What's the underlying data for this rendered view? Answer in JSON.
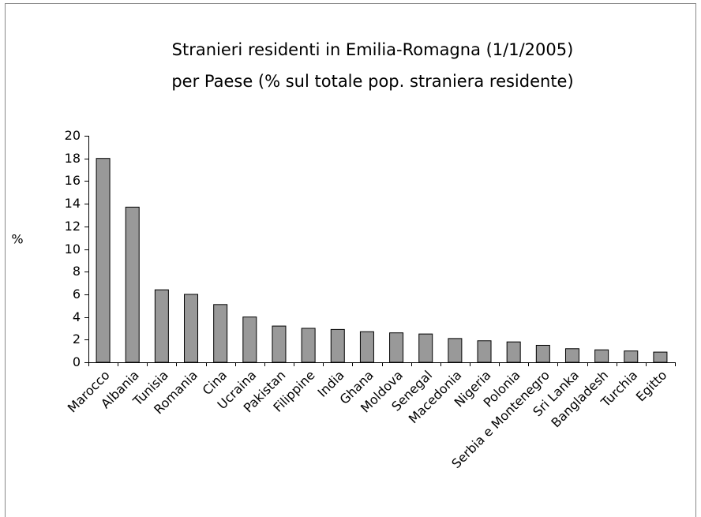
{
  "chart_data": {
    "type": "bar",
    "title": "Stranieri residenti in Emilia-Romagna (1/1/2005)",
    "subtitle": "per Paese (% sul totale pop. straniera residente)",
    "y_label": "%",
    "categories": [
      "Marocco",
      "Albania",
      "Tunisia",
      "Romania",
      "Cina",
      "Ucraina",
      "Pakistan",
      "Filippine",
      "India",
      "Ghana",
      "Moldova",
      "Senegal",
      "Macedonia",
      "Nigeria",
      "Polonia",
      "Serbia e Montenegro",
      "Sri Lanka",
      "Bangladesh",
      "Turchia",
      "Egitto"
    ],
    "values": [
      18.0,
      13.7,
      6.4,
      6.0,
      5.1,
      4.0,
      3.2,
      3.0,
      2.9,
      2.7,
      2.6,
      2.5,
      2.1,
      1.9,
      1.8,
      1.5,
      1.2,
      1.1,
      1.0,
      0.9
    ],
    "color": "#999999",
    "ylim": [
      0,
      20
    ],
    "yticks": [
      0,
      2,
      4,
      6,
      8,
      10,
      12,
      14,
      16,
      18,
      20
    ],
    "grid": false
  }
}
